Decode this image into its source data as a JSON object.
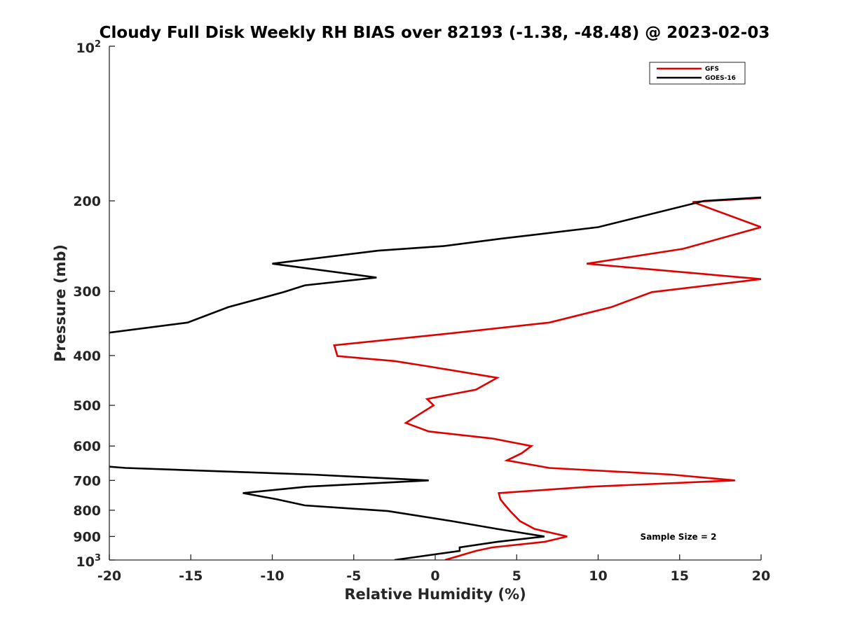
{
  "chart_data": {
    "type": "line",
    "title": "Cloudy Full Disk Weekly RH BIAS over 82193 (-1.38, -48.48) @ 2023-02-03",
    "xlabel": "Relative Humidity (%)",
    "ylabel": "Pressure (mb)",
    "xlim": [
      -20,
      20
    ],
    "ylim": [
      100,
      1000
    ],
    "y_scale": "log",
    "y_reversed": true,
    "grid": false,
    "legend_position": "top-right",
    "x_ticks": [
      -20,
      -15,
      -10,
      -5,
      0,
      5,
      10,
      15,
      20
    ],
    "x_tick_labels": [
      "-20",
      "-15",
      "-10",
      "-5",
      "0",
      "5",
      "10",
      "15",
      "20"
    ],
    "y_ticks": [
      100,
      200,
      300,
      400,
      500,
      600,
      700,
      800,
      900,
      1000
    ],
    "y_tick_labels": [
      {
        "base": "10",
        "exp": "2"
      },
      {
        "base": "200",
        "exp": ""
      },
      {
        "base": "300",
        "exp": ""
      },
      {
        "base": "400",
        "exp": ""
      },
      {
        "base": "500",
        "exp": ""
      },
      {
        "base": "600",
        "exp": ""
      },
      {
        "base": "700",
        "exp": ""
      },
      {
        "base": "800",
        "exp": ""
      },
      {
        "base": "900",
        "exp": ""
      },
      {
        "base": "10",
        "exp": "3"
      }
    ],
    "series": [
      {
        "name": "GFS",
        "color": "#e00000",
        "points": [
          {
            "x": 20.5,
            "y": 197
          },
          {
            "x": 15.8,
            "y": 201
          },
          {
            "x": 20.0,
            "y": 225
          },
          {
            "x": 15.2,
            "y": 248
          },
          {
            "x": 9.3,
            "y": 265
          },
          {
            "x": 20.0,
            "y": 284
          },
          {
            "x": 13.3,
            "y": 301
          },
          {
            "x": 10.8,
            "y": 322
          },
          {
            "x": 7.0,
            "y": 345
          },
          {
            "x": 1.0,
            "y": 362
          },
          {
            "x": -6.2,
            "y": 382
          },
          {
            "x": -6.0,
            "y": 401
          },
          {
            "x": -2.5,
            "y": 410
          },
          {
            "x": -0.4,
            "y": 420
          },
          {
            "x": 3.8,
            "y": 442
          },
          {
            "x": 2.5,
            "y": 466
          },
          {
            "x": -0.5,
            "y": 486
          },
          {
            "x": -0.1,
            "y": 500
          },
          {
            "x": -1.0,
            "y": 521
          },
          {
            "x": -1.8,
            "y": 541
          },
          {
            "x": -0.4,
            "y": 562
          },
          {
            "x": 3.5,
            "y": 580
          },
          {
            "x": 5.9,
            "y": 600
          },
          {
            "x": 5.3,
            "y": 620
          },
          {
            "x": 4.4,
            "y": 640
          },
          {
            "x": 7.0,
            "y": 662
          },
          {
            "x": 14.5,
            "y": 682
          },
          {
            "x": 18.4,
            "y": 700
          },
          {
            "x": 9.5,
            "y": 720
          },
          {
            "x": 3.9,
            "y": 741
          },
          {
            "x": 4.0,
            "y": 762
          },
          {
            "x": 4.3,
            "y": 783
          },
          {
            "x": 4.6,
            "y": 803
          },
          {
            "x": 5.2,
            "y": 840
          },
          {
            "x": 6.1,
            "y": 870
          },
          {
            "x": 8.1,
            "y": 900
          },
          {
            "x": 6.7,
            "y": 922
          },
          {
            "x": 3.5,
            "y": 945
          },
          {
            "x": 2.5,
            "y": 960
          },
          {
            "x": 0.6,
            "y": 1000
          }
        ]
      },
      {
        "name": "GOES-16",
        "color": "#000000",
        "points": [
          {
            "x": 20.0,
            "y": 197
          },
          {
            "x": 16.5,
            "y": 200
          },
          {
            "x": 10.0,
            "y": 225
          },
          {
            "x": 4.0,
            "y": 237
          },
          {
            "x": 0.5,
            "y": 245
          },
          {
            "x": -3.5,
            "y": 250
          },
          {
            "x": -10.0,
            "y": 265
          },
          {
            "x": -3.6,
            "y": 282
          },
          {
            "x": -8.0,
            "y": 292
          },
          {
            "x": -9.3,
            "y": 301
          },
          {
            "x": -12.7,
            "y": 322
          },
          {
            "x": -15.2,
            "y": 345
          },
          {
            "x": -20.3,
            "y": 362
          }
        ]
      },
      {
        "name": "GOES-16",
        "color": "#000000",
        "points": [
          {
            "x": -20.3,
            "y": 657
          },
          {
            "x": -19.0,
            "y": 662
          },
          {
            "x": -7.5,
            "y": 682
          },
          {
            "x": -0.4,
            "y": 700
          },
          {
            "x": -7.9,
            "y": 720
          },
          {
            "x": -11.8,
            "y": 741
          },
          {
            "x": -9.7,
            "y": 762
          },
          {
            "x": -8.0,
            "y": 783
          },
          {
            "x": -2.9,
            "y": 803
          },
          {
            "x": 1.0,
            "y": 840
          },
          {
            "x": 3.8,
            "y": 870
          },
          {
            "x": 6.7,
            "y": 900
          },
          {
            "x": 3.8,
            "y": 922
          },
          {
            "x": 1.5,
            "y": 945
          },
          {
            "x": 1.5,
            "y": 960
          },
          {
            "x": 0.0,
            "y": 975
          },
          {
            "x": -2.5,
            "y": 1000
          }
        ]
      }
    ],
    "legend": [
      {
        "label": "GFS",
        "color": "#e00000"
      },
      {
        "label": "GOES-16",
        "color": "#000000"
      }
    ],
    "annotation": "Sample Size = 2"
  }
}
